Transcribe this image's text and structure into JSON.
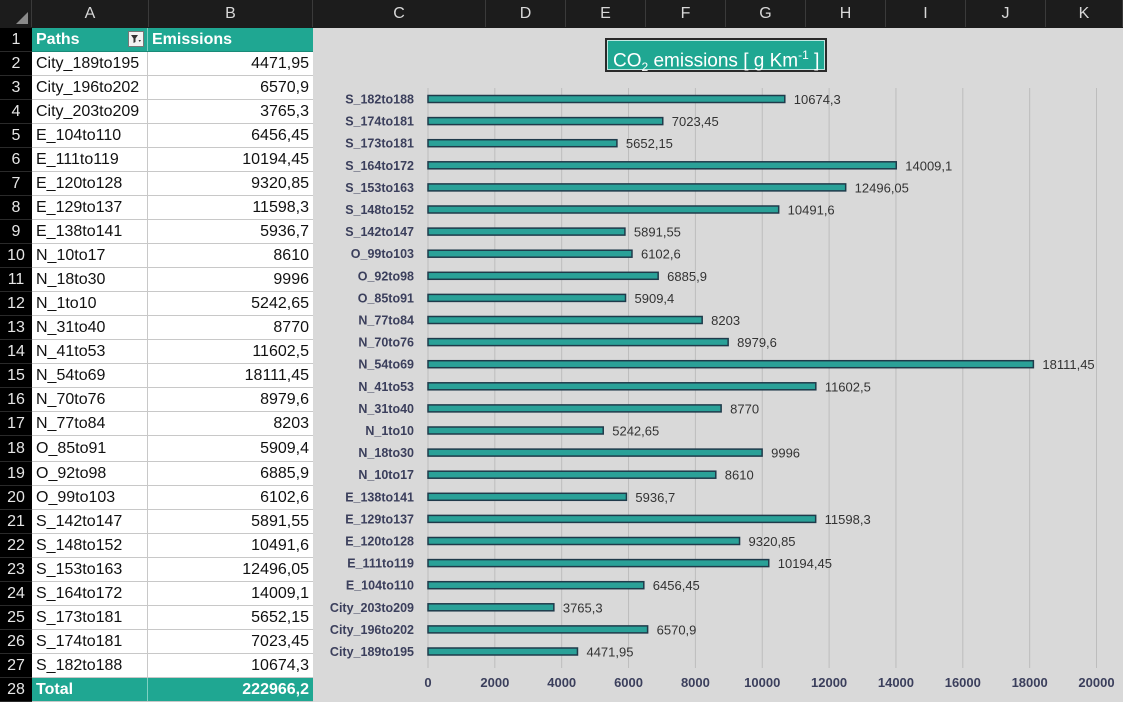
{
  "sheet": {
    "columns": [
      "A",
      "B",
      "C",
      "D",
      "E",
      "F",
      "G",
      "H",
      "I",
      "J",
      "K"
    ],
    "header": {
      "paths": "Paths",
      "emissions": "Emissions"
    },
    "rows": [
      {
        "path": "City_189to195",
        "value": "4471,95"
      },
      {
        "path": "City_196to202",
        "value": "6570,9"
      },
      {
        "path": "City_203to209",
        "value": "3765,3"
      },
      {
        "path": "E_104to110",
        "value": "6456,45"
      },
      {
        "path": "E_111to119",
        "value": "10194,45"
      },
      {
        "path": "E_120to128",
        "value": "9320,85"
      },
      {
        "path": "E_129to137",
        "value": "11598,3"
      },
      {
        "path": "E_138to141",
        "value": "5936,7"
      },
      {
        "path": "N_10to17",
        "value": "8610"
      },
      {
        "path": "N_18to30",
        "value": "9996"
      },
      {
        "path": "N_1to10",
        "value": "5242,65"
      },
      {
        "path": "N_31to40",
        "value": "8770"
      },
      {
        "path": "N_41to53",
        "value": "11602,5"
      },
      {
        "path": "N_54to69",
        "value": "18111,45"
      },
      {
        "path": "N_70to76",
        "value": "8979,6"
      },
      {
        "path": "N_77to84",
        "value": "8203"
      },
      {
        "path": "O_85to91",
        "value": "5909,4"
      },
      {
        "path": "O_92to98",
        "value": "6885,9"
      },
      {
        "path": "O_99to103",
        "value": "6102,6"
      },
      {
        "path": "S_142to147",
        "value": "5891,55"
      },
      {
        "path": "S_148to152",
        "value": "10491,6"
      },
      {
        "path": "S_153to163",
        "value": "12496,05"
      },
      {
        "path": "S_164to172",
        "value": "14009,1"
      },
      {
        "path": "S_173to181",
        "value": "5652,15"
      },
      {
        "path": "S_174to181",
        "value": "7023,45"
      },
      {
        "path": "S_182to188",
        "value": "10674,3"
      }
    ],
    "total": {
      "label": "Total",
      "value": "222966,2"
    }
  },
  "colors": {
    "accent": "#1fa792",
    "bar_fill": "#2aa198",
    "bar_stroke": "#1f3a4a",
    "chart_bg": "#d9d9d9"
  },
  "chart_data": {
    "type": "bar",
    "orientation": "horizontal",
    "title": {
      "main": "CO",
      "sub": "2",
      "mid": " emissions [ g Km",
      "sup": "-1",
      "end": " ]"
    },
    "xlim": [
      0,
      20000
    ],
    "xticks": [
      0,
      2000,
      4000,
      6000,
      8000,
      10000,
      12000,
      14000,
      16000,
      18000,
      20000
    ],
    "grid": true,
    "categories": [
      "S_182to188",
      "S_174to181",
      "S_173to181",
      "S_164to172",
      "S_153to163",
      "S_148to152",
      "S_142to147",
      "O_99to103",
      "O_92to98",
      "O_85to91",
      "N_77to84",
      "N_70to76",
      "N_54to69",
      "N_41to53",
      "N_31to40",
      "N_1to10",
      "N_18to30",
      "N_10to17",
      "E_138to141",
      "E_129to137",
      "E_120to128",
      "E_111to119",
      "E_104to110",
      "City_203to209",
      "City_196to202",
      "City_189to195"
    ],
    "values": [
      10674.3,
      7023.45,
      5652.15,
      14009.1,
      12496.05,
      10491.6,
      5891.55,
      6102.6,
      6885.9,
      5909.4,
      8203,
      8979.6,
      18111.45,
      11602.5,
      8770,
      5242.65,
      9996,
      8610,
      5936.7,
      11598.3,
      9320.85,
      10194.45,
      6456.45,
      3765.3,
      6570.9,
      4471.95
    ],
    "data_labels": [
      "10674,3",
      "7023,45",
      "5652,15",
      "14009,1",
      "12496,05",
      "10491,6",
      "5891,55",
      "6102,6",
      "6885,9",
      "5909,4",
      "8203",
      "8979,6",
      "18111,45",
      "11602,5",
      "8770",
      "5242,65",
      "9996",
      "8610",
      "5936,7",
      "11598,3",
      "9320,85",
      "10194,45",
      "6456,45",
      "3765,3",
      "6570,9",
      "4471,95"
    ]
  }
}
